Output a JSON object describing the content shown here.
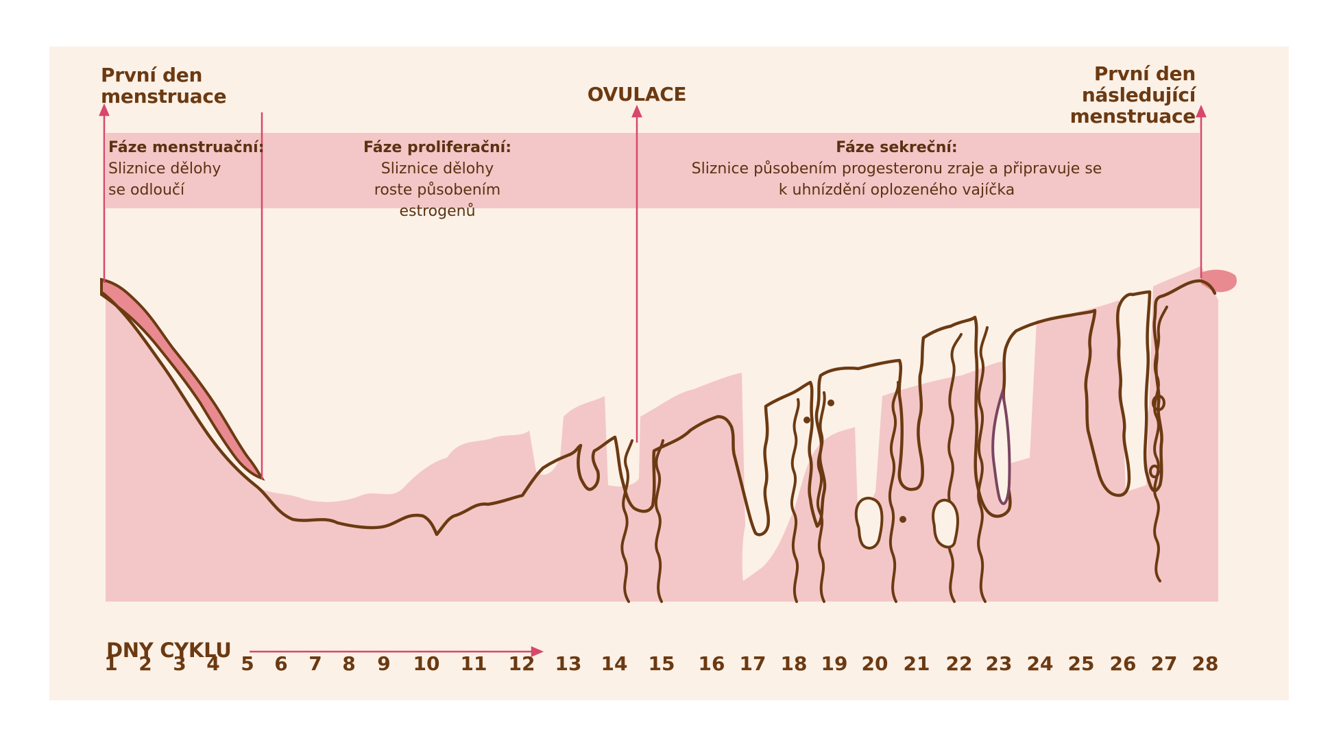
{
  "labels": {
    "first_day": "První den menstruace",
    "ovulation": "OVULACE",
    "next_first_day": "První den následující menstruace",
    "cycle_days": "DNY CYKLU"
  },
  "phases": [
    {
      "title": "Fáze menstruační:",
      "text": "Sliznice dělohy se odloučí"
    },
    {
      "title": "Fáze proliferační:",
      "text": "Sliznice dělohy roste působením estrogenů"
    },
    {
      "title": "Fáze sekreční:",
      "text": "Sliznice působením progesteronu zraje a připravuje se k uhnízdění oplozeného vajíčka"
    }
  ],
  "days": [
    "1",
    "2",
    "3",
    "4",
    "5",
    "6",
    "7",
    "8",
    "9",
    "10",
    "11",
    "12",
    "13",
    "14",
    "15",
    "16",
    "17",
    "18",
    "19",
    "20",
    "21",
    "22",
    "23",
    "24",
    "25",
    "26",
    "27",
    "28"
  ],
  "colors": {
    "background": "#fcf1e7",
    "band": "#f3c7c7",
    "tissue": "#f3c7c7",
    "bleeding": "#e88a8f",
    "outline": "#6b3a12",
    "arrow": "#d6486c",
    "text": "#6b3a12"
  }
}
